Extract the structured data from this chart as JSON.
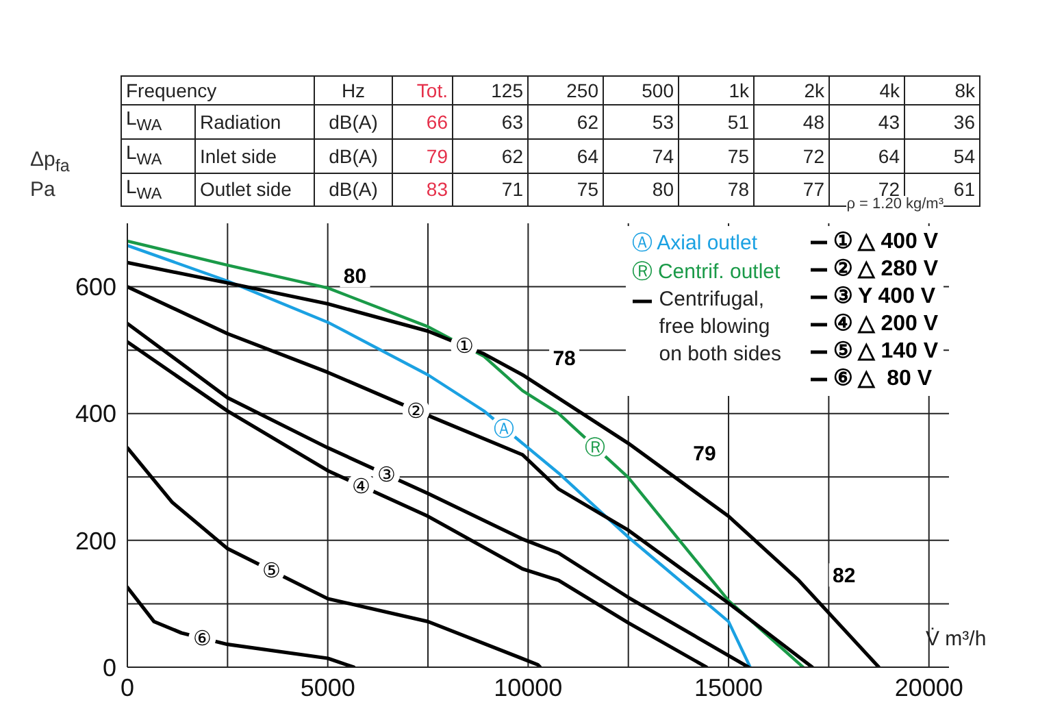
{
  "chart_data": {
    "type": "line",
    "xlabel": "V̇ m³/h",
    "ylabel": "Δp$_{fa}$ Pa",
    "xlim": [
      0,
      20500
    ],
    "ylim": [
      0,
      700
    ],
    "xticks": [
      0,
      {
        "value": 2500,
        "label": null
      },
      5000,
      {
        "value": 7500,
        "label": null
      },
      10000,
      {
        "value": 12500,
        "label": null
      },
      15000,
      {
        "value": 17500,
        "label": null
      },
      20000
    ],
    "yticks": [
      0,
      {
        "value": 100,
        "label": null
      },
      200,
      {
        "value": 300,
        "label": null
      },
      400,
      {
        "value": 500,
        "label": null
      },
      600
    ],
    "grid": true,
    "legend": "top right",
    "marker": "none",
    "line_style": "solid",
    "series": [
      {
        "name": "Ⓐ Axial outlet",
        "color": "#1ba1e2",
        "x": [
          0,
          2500,
          5000,
          7500,
          8900,
          9860,
          10760,
          12500,
          15000,
          15540
        ],
        "values": [
          665,
          609,
          544,
          461,
          404,
          353,
          306,
          205,
          72,
          0
        ]
      },
      {
        "name": "Ⓡ Centrif. outlet",
        "color": "#1a9a48",
        "x": [
          0,
          2500,
          5000,
          7500,
          8900,
          9860,
          10760,
          12500,
          15000,
          16860
        ],
        "values": [
          672,
          634,
          598,
          537,
          490,
          436,
          400,
          299,
          105,
          0
        ]
      },
      {
        "name": "① △ 400 V",
        "color": "#000000",
        "x": [
          0,
          2500,
          5000,
          7500,
          8900,
          9860,
          12500,
          15000,
          16750,
          18750
        ],
        "values": [
          638,
          606,
          573,
          530,
          494,
          461,
          353,
          238,
          137,
          0
        ]
      },
      {
        "name": "② △ 280 V",
        "color": "#000000",
        "x": [
          0,
          2500,
          5000,
          7500,
          9860,
          10760,
          12500,
          15000,
          17090
        ],
        "values": [
          600,
          526,
          465,
          397,
          335,
          281,
          216,
          101,
          0
        ]
      },
      {
        "name": "③ Y 400 V",
        "color": "#000000",
        "x": [
          0,
          2500,
          5000,
          7500,
          9860,
          10760,
          12500,
          15500
        ],
        "values": [
          542,
          425,
          346,
          274,
          202,
          180,
          110,
          0
        ]
      },
      {
        "name": "④ △ 200 V",
        "color": "#000000",
        "x": [
          0,
          2500,
          5000,
          7500,
          9860,
          10760,
          12500,
          14450
        ],
        "values": [
          513,
          404,
          310,
          238,
          155,
          137,
          70,
          0
        ]
      },
      {
        "name": "⑤ △ 140 V",
        "color": "#000000",
        "x": [
          0,
          1120,
          2500,
          5000,
          7500,
          10240,
          10300
        ],
        "values": [
          346,
          260,
          187,
          108,
          72,
          4,
          0
        ]
      },
      {
        "name": "⑥ △  80 V",
        "color": "#000000",
        "x": [
          0,
          665,
          1350,
          2500,
          5000,
          5650
        ],
        "values": [
          126,
          72,
          54,
          36,
          14,
          0
        ]
      }
    ],
    "annotations": [
      "Frequency\t\tHz\tTot.\t125\t250\t500\t1k\t2k\t4k\t8k",
      "L$_{WA}$\tRadiation\tdB(A)\t66\t63\t62\t53\t51\t48\t43\t36",
      "L$_{WA}$\tInlet side\tdB(A)\t79\t62\t64\t74\t75\t72\t64\t54",
      "L$_{WA}$\tOutlet side\tdB(A)\t83\t71\t75\t80\t78\t77\t72\t61",
      "ρ = 1.20 kg/m³",
      "Centrifugal, free blowing on both sides",
      {
        "text": "80",
        "x": 5100,
        "y": 571
      },
      {
        "text": "78",
        "x": 10320,
        "y": 442
      },
      {
        "text": "79",
        "x": 13820,
        "y": 292
      },
      {
        "text": "82",
        "x": 17300,
        "y": 99
      },
      {
        "text": "①",
        "x": 8400,
        "y": 507
      },
      {
        "text": "②",
        "x": 7200,
        "y": 405
      },
      {
        "text": "③",
        "x": 6460,
        "y": 304
      },
      {
        "text": "④",
        "x": 5830,
        "y": 286
      },
      {
        "text": "⑤",
        "x": 3590,
        "y": 153
      },
      {
        "text": "⑥",
        "x": 1870,
        "y": 46
      },
      {
        "text": "Ⓐ",
        "x": 9400,
        "y": 377
      },
      {
        "text": "Ⓡ",
        "x": 11670,
        "y": 347
      }
    ]
  }
}
